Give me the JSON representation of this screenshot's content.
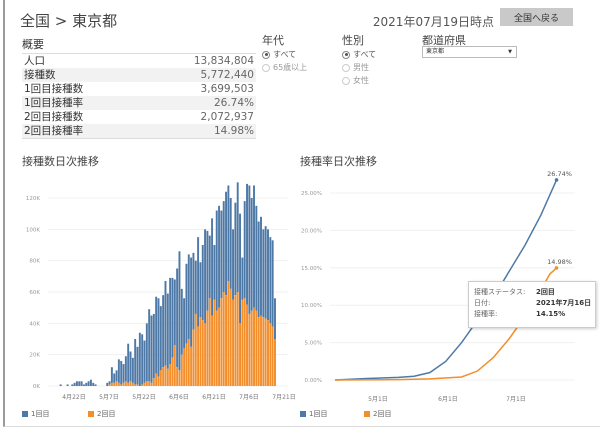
{
  "header": {
    "breadcrumb": "全国 > 東京都",
    "as_of": "2021年07月19日時点",
    "back_button": "全国へ戻る"
  },
  "summary": {
    "title": "概要",
    "rows": [
      {
        "label": "人口",
        "value": "13,834,804"
      },
      {
        "label": "接種数",
        "value": "5,772,440"
      },
      {
        "label": "1回目接種数",
        "value": "3,699,503"
      },
      {
        "label": "1回目接種率",
        "value": "26.74%"
      },
      {
        "label": "2回目接種数",
        "value": "2,072,937"
      },
      {
        "label": "2回目接種率",
        "value": "14.98%"
      }
    ]
  },
  "filters": {
    "age": {
      "label": "年代",
      "options": [
        "すべて",
        "65歳以上"
      ],
      "selected": "すべて"
    },
    "sex": {
      "label": "性別",
      "options": [
        "すべて",
        "男性",
        "女性"
      ],
      "selected": "すべて"
    },
    "prefecture": {
      "label": "都道府県",
      "value": "東京都"
    }
  },
  "colors": {
    "dose1": "#4e79a7",
    "dose2": "#f28e2b"
  },
  "chart_data": [
    {
      "type": "bar",
      "stacked": true,
      "title": "接種数日次推移",
      "x_range": [
        "2021-04-16",
        "2021-07-19"
      ],
      "x_ticks": [
        "4月22日",
        "5月7日",
        "5月22日",
        "6月6日",
        "6月21日",
        "7月6日",
        "7月21日"
      ],
      "y_ticks": [
        "0K",
        "20K",
        "40K",
        "60K",
        "80K",
        "100K",
        "120K"
      ],
      "ylim": [
        0,
        130000
      ],
      "grid": true,
      "legend": "bottom",
      "total_k": [
        0,
        0,
        1,
        0,
        0,
        1,
        0,
        1,
        2,
        3,
        3,
        3,
        1,
        2,
        3,
        4,
        2,
        1,
        0,
        0,
        0,
        0,
        2,
        3,
        12,
        8,
        10,
        17,
        16,
        14,
        19,
        27,
        22,
        18,
        30,
        25,
        34,
        33,
        29,
        40,
        49,
        45,
        46,
        57,
        56,
        51,
        58,
        67,
        59,
        69,
        69,
        68,
        75,
        86,
        62,
        56,
        78,
        84,
        82,
        85,
        80,
        95,
        79,
        90,
        100,
        99,
        96,
        107,
        90,
        112,
        115,
        112,
        118,
        124,
        128,
        120,
        100,
        117,
        130,
        110,
        82,
        118,
        129,
        128,
        120,
        128,
        115,
        105,
        108,
        100,
        102,
        100,
        95,
        93,
        56
      ],
      "series": [
        {
          "name": "1回目"
        },
        {
          "name": "2回目",
          "values_k": [
            0,
            0,
            0,
            0,
            0,
            0,
            0,
            0,
            0,
            0,
            0,
            0,
            0,
            0,
            0,
            0,
            0,
            0,
            0,
            0,
            0,
            0,
            0,
            1,
            2,
            2,
            3,
            2,
            1,
            2,
            3,
            2,
            3,
            2,
            1,
            1,
            0,
            1,
            2,
            3,
            3,
            2,
            5,
            8,
            6,
            10,
            12,
            13,
            11,
            14,
            18,
            26,
            12,
            10,
            20,
            24,
            27,
            30,
            25,
            36,
            46,
            38,
            44,
            42,
            40,
            48,
            56,
            45,
            55,
            48,
            50,
            56,
            60,
            58,
            67,
            62,
            55,
            58,
            60,
            40,
            55,
            56,
            52,
            46,
            48,
            50,
            48,
            44,
            45,
            44,
            43,
            42,
            40,
            38,
            30
          ]
        }
      ]
    },
    {
      "type": "line",
      "title": "接種率日次推移",
      "x_ticks": [
        "5月1日",
        "6月1日",
        "7月1日"
      ],
      "y_ticks": [
        "0.00%",
        "5.00%",
        "10.00%",
        "15.00%",
        "20.00%",
        "25.00%"
      ],
      "ylim": [
        0,
        27
      ],
      "grid": true,
      "legend": "bottom",
      "series": [
        {
          "name": "1回目",
          "end_label": "26.74%",
          "points": [
            [
              "2021-04-12",
              0
            ],
            [
              "2021-04-26",
              0.2
            ],
            [
              "2021-05-10",
              0.35
            ],
            [
              "2021-05-17",
              0.5
            ],
            [
              "2021-05-24",
              1.0
            ],
            [
              "2021-05-31",
              2.5
            ],
            [
              "2021-06-07",
              5.0
            ],
            [
              "2021-06-14",
              8.0
            ],
            [
              "2021-06-21",
              11
            ],
            [
              "2021-06-28",
              14.5
            ],
            [
              "2021-07-05",
              18
            ],
            [
              "2021-07-12",
              22
            ],
            [
              "2021-07-19",
              26.74
            ]
          ]
        },
        {
          "name": "2回目",
          "end_label": "14.98%",
          "points": [
            [
              "2021-04-12",
              0
            ],
            [
              "2021-05-10",
              0.05
            ],
            [
              "2021-05-24",
              0.15
            ],
            [
              "2021-06-07",
              0.4
            ],
            [
              "2021-06-14",
              1.2
            ],
            [
              "2021-06-21",
              3
            ],
            [
              "2021-06-28",
              5.5
            ],
            [
              "2021-07-05",
              8.5
            ],
            [
              "2021-07-12",
              12
            ],
            [
              "2021-07-16",
              14.15
            ],
            [
              "2021-07-19",
              14.98
            ]
          ]
        }
      ],
      "tooltip": {
        "rows": [
          {
            "key": "接種ステータス:",
            "value": "2回目"
          },
          {
            "key": "日付:",
            "value": "2021年7月16日"
          },
          {
            "key": "接種率:",
            "value": "14.15%"
          }
        ]
      }
    }
  ]
}
